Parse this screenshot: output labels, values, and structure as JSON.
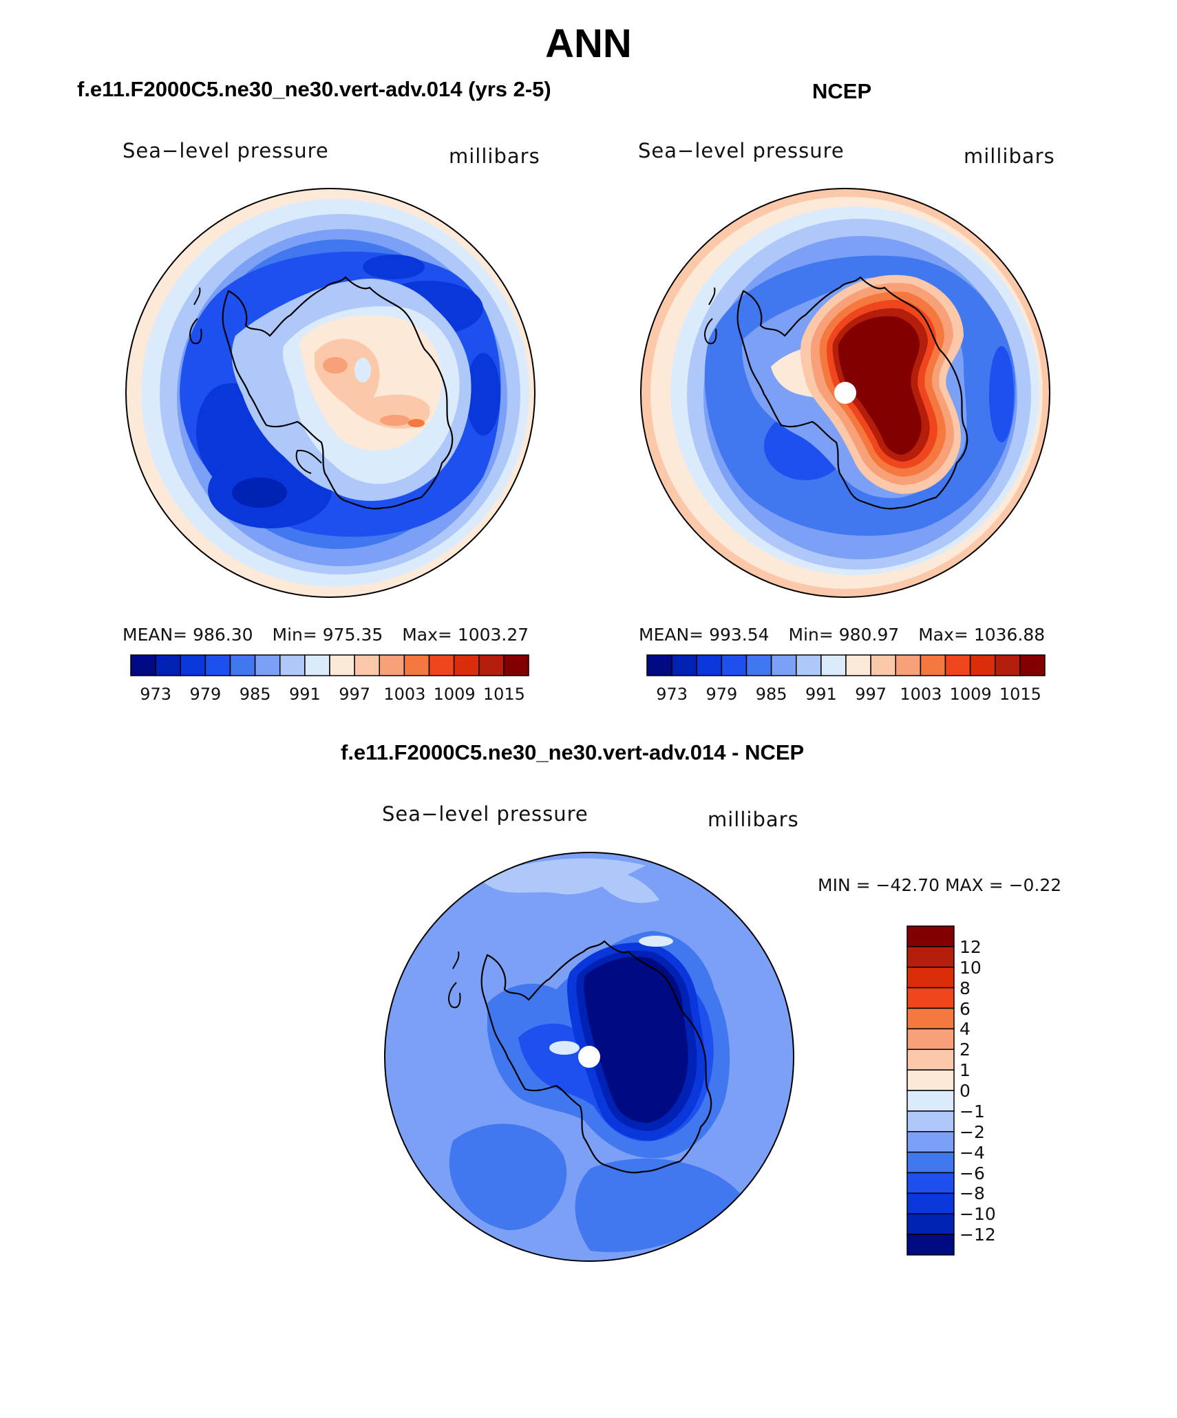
{
  "page": {
    "title": "ANN"
  },
  "panels": [
    {
      "id": "model",
      "subtitle": "f.e11.F2000C5.ne30_ne30.vert-adv.014 (yrs 2-5)",
      "field_label": "Sea−level pressure",
      "units_label": "millibars",
      "stats": {
        "mean_label": "MEAN=",
        "mean": "986.30",
        "min_label": "Min=",
        "min": "975.35",
        "max_label": "Max=",
        "max": "1003.27"
      }
    },
    {
      "id": "ncep",
      "subtitle": "NCEP",
      "field_label": "Sea−level pressure",
      "units_label": "millibars",
      "stats": {
        "mean_label": "MEAN=",
        "mean": "993.54",
        "min_label": "Min=",
        "min": "980.97",
        "max_label": "Max=",
        "max": "1036.88"
      }
    },
    {
      "id": "difference",
      "subtitle": "f.e11.F2000C5.ne30_ne30.vert-adv.014 - NCEP",
      "field_label": "Sea−level pressure",
      "units_label": "millibars",
      "stats_text": "MIN = −42.70 MAX =  −0.22"
    }
  ],
  "colorbars": {
    "absolute": {
      "ticks": [
        "973",
        "979",
        "985",
        "991",
        "997",
        "1003",
        "1009",
        "1015"
      ],
      "colors": [
        "#000a82",
        "#0022b4",
        "#0a37dc",
        "#1e50f0",
        "#4178f0",
        "#7ba0f5",
        "#aec8fa",
        "#dcebfc",
        "#fde9d7",
        "#fbc8aa",
        "#f8a078",
        "#f5783f",
        "#f0461e",
        "#dc2d0a",
        "#b41e0a",
        "#820000"
      ]
    },
    "difference": {
      "ticks": [
        "12",
        "10",
        "8",
        "6",
        "4",
        "2",
        "1",
        "0",
        "−1",
        "−2",
        "−4",
        "−6",
        "−8",
        "−10",
        "−12"
      ],
      "colors": [
        "#820000",
        "#b41e0a",
        "#dc2d0a",
        "#f0461e",
        "#f5783f",
        "#f8a078",
        "#fbc8aa",
        "#fde9d7",
        "#dcebfc",
        "#aec8fa",
        "#7ba0f5",
        "#4178f0",
        "#1e50f0",
        "#0a37dc",
        "#0022b4",
        "#000a82"
      ]
    }
  }
}
